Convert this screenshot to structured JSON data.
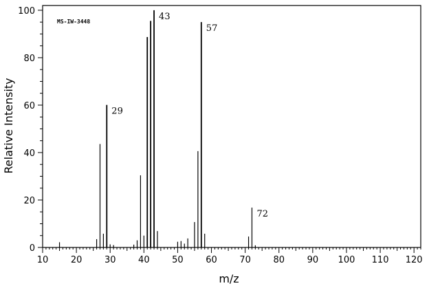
{
  "chart_data": {
    "type": "bar",
    "spectrum_id": "MS-IW-3448",
    "xlabel": "m/z",
    "ylabel": "Relative Intensity",
    "xlim": [
      10,
      122
    ],
    "ylim": [
      0,
      102
    ],
    "xticks_major": [
      10,
      20,
      30,
      40,
      50,
      60,
      70,
      80,
      90,
      100,
      110,
      120
    ],
    "yticks_major": [
      0,
      20,
      40,
      60,
      80,
      100
    ],
    "x_tick_step_minor": 1,
    "y_tick_step_minor": 5,
    "grid": false,
    "peak_labels": [
      "29",
      "43",
      "57",
      "72"
    ],
    "peaks": [
      {
        "mz": 15,
        "intensity": 2.2
      },
      {
        "mz": 26,
        "intensity": 3.5
      },
      {
        "mz": 27,
        "intensity": 43.6
      },
      {
        "mz": 28,
        "intensity": 5.8
      },
      {
        "mz": 29,
        "intensity": 60.1
      },
      {
        "mz": 30,
        "intensity": 1.3
      },
      {
        "mz": 31,
        "intensity": 1.0
      },
      {
        "mz": 37,
        "intensity": 1.2
      },
      {
        "mz": 38,
        "intensity": 3.0
      },
      {
        "mz": 39,
        "intensity": 30.4
      },
      {
        "mz": 40,
        "intensity": 5.0
      },
      {
        "mz": 41,
        "intensity": 88.7
      },
      {
        "mz": 42,
        "intensity": 95.5
      },
      {
        "mz": 43,
        "intensity": 100
      },
      {
        "mz": 44,
        "intensity": 6.9
      },
      {
        "mz": 50,
        "intensity": 2.4
      },
      {
        "mz": 51,
        "intensity": 2.7
      },
      {
        "mz": 52,
        "intensity": 1.6
      },
      {
        "mz": 53,
        "intensity": 3.8
      },
      {
        "mz": 55,
        "intensity": 10.7
      },
      {
        "mz": 56,
        "intensity": 40.6
      },
      {
        "mz": 57,
        "intensity": 95.0
      },
      {
        "mz": 58,
        "intensity": 5.8
      },
      {
        "mz": 71,
        "intensity": 4.6
      },
      {
        "mz": 72,
        "intensity": 16.8
      },
      {
        "mz": 73,
        "intensity": 0.9
      }
    ]
  }
}
